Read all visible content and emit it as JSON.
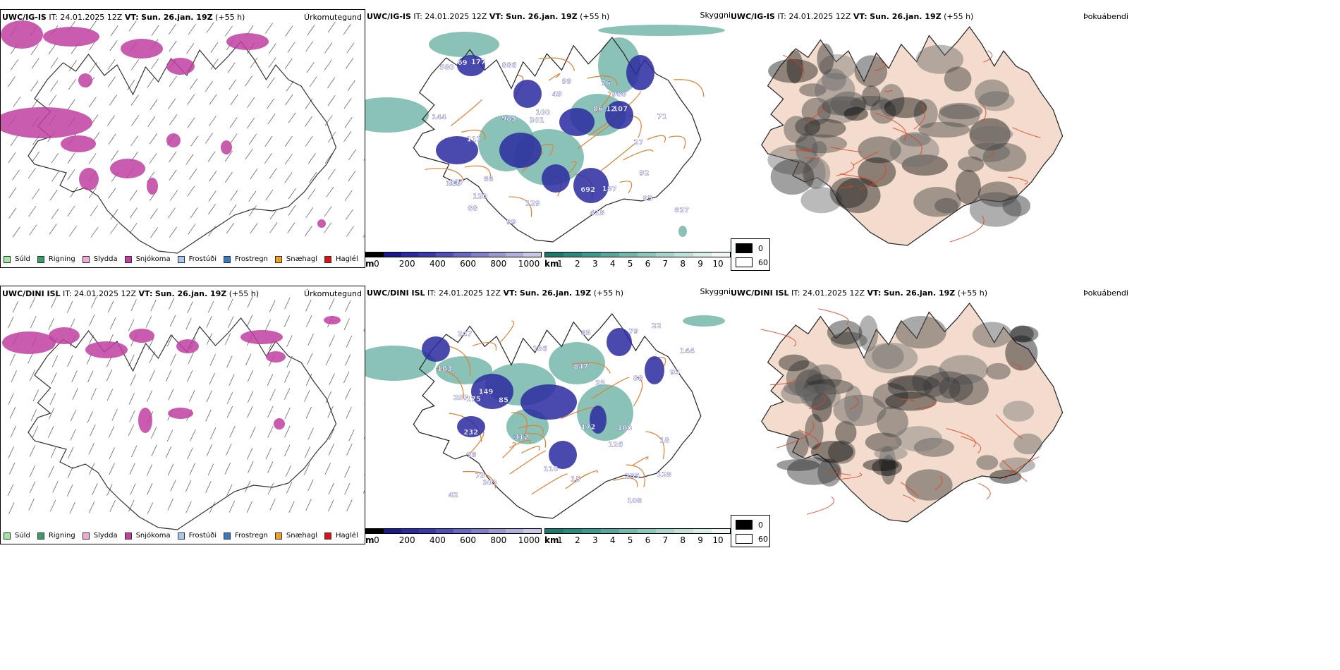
{
  "common": {
    "it_label": "IT:",
    "it_value": "24.01.2025 12Z",
    "vt_label": "VT:",
    "vt_value": "Sun. 26.jan. 19Z",
    "offset": "(+55 h)"
  },
  "rows": [
    {
      "model": "UWC/IG-IS",
      "panels": {
        "precip": {
          "title": "Úrkomutegund"
        },
        "cloud": {
          "title": "Skyggni"
        },
        "fog": {
          "title": "Þokuábendi"
        }
      },
      "cloud_labels": [
        "985",
        "988",
        "580",
        "827",
        "95",
        "100",
        "99",
        "142",
        "144",
        "418",
        "107",
        "112",
        "886",
        "88",
        "177",
        "692",
        "187",
        "301",
        "71",
        "86",
        "120",
        "99",
        "129",
        "92",
        "27",
        "88",
        "12",
        "347",
        "49",
        "69",
        "76"
      ]
    },
    {
      "model": "UWC/DINI ISL",
      "panels": {
        "precip": {
          "title": "Úrkomutegund"
        },
        "cloud": {
          "title": "Skyggni"
        },
        "fog": {
          "title": "Þokuábendi"
        }
      },
      "cloud_labels": [
        "172",
        "79",
        "93",
        "25",
        "303",
        "247",
        "96",
        "73",
        "85",
        "136",
        "103",
        "100",
        "285",
        "257",
        "22",
        "847",
        "126",
        "312",
        "232",
        "149",
        "110",
        "88",
        "128",
        "15",
        "18",
        "175",
        "144",
        "108",
        "85",
        "42"
      ]
    }
  ],
  "precip_legend": [
    {
      "label": "Súld",
      "color": "#a0e6a0"
    },
    {
      "label": "Rigning",
      "color": "#3a9a6a"
    },
    {
      "label": "Slydda",
      "color": "#f0a8d8"
    },
    {
      "label": "Snjókoma",
      "color": "#c040a0"
    },
    {
      "label": "Frostúði",
      "color": "#a8c8f0"
    },
    {
      "label": "Frostregn",
      "color": "#3a78c0"
    },
    {
      "label": "Snæhagl",
      "color": "#f0a020"
    },
    {
      "label": "Haglél",
      "color": "#e01010"
    }
  ],
  "ceiling_scale": {
    "unit": "m",
    "ticks": [
      "0",
      "200",
      "400",
      "600",
      "800",
      "1000"
    ],
    "colors": [
      "#000000",
      "#1a1a8a",
      "#2a2aa0",
      "#3838aa",
      "#5050b4",
      "#6868c0",
      "#8080c8",
      "#9898d0",
      "#b0b0dc",
      "#c8c8e6"
    ]
  },
  "visibility_scale": {
    "unit": "km",
    "ticks": [
      "1",
      "2",
      "3",
      "4",
      "5",
      "6",
      "7",
      "8",
      "9",
      "10"
    ],
    "colors": [
      "#1a7a6e",
      "#2a8a7e",
      "#3a9a8e",
      "#56a89c",
      "#72b8ac",
      "#8ec6bc",
      "#a8d4cc",
      "#c0e0da",
      "#d8ece8",
      "#f0f8f6"
    ]
  },
  "fog_legend": [
    {
      "label": "0",
      "color": "#000000"
    },
    {
      "label": "60",
      "color": "#ffffff"
    }
  ]
}
